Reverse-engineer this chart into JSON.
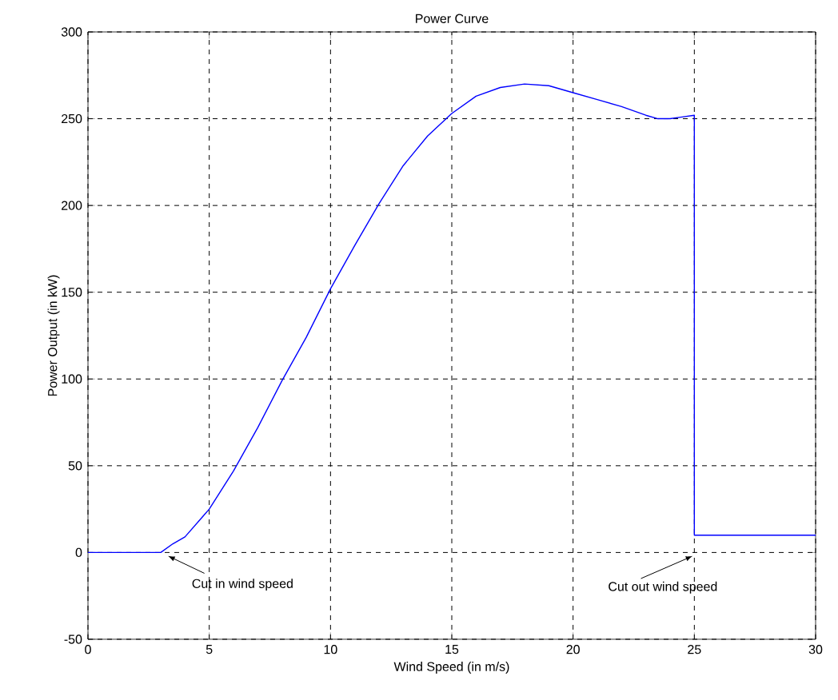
{
  "chart_data": {
    "type": "line",
    "title": "Power Curve",
    "xlabel": "Wind Speed  (in m/s)",
    "ylabel": "Power Output (in kW)",
    "x": [
      0,
      3,
      3.5,
      4,
      5,
      6,
      7,
      8,
      9,
      10,
      11,
      12,
      13,
      14,
      15,
      16,
      17,
      18,
      19,
      20,
      21,
      22,
      23,
      23.5,
      24,
      24.5,
      25,
      25,
      30
    ],
    "series": [
      {
        "color": "#0000ff",
        "values": [
          0,
          0,
          5,
          9,
          25,
          47,
          72,
          99,
          124,
          152,
          177,
          201,
          223,
          240,
          253,
          263,
          268,
          270,
          269,
          265,
          261,
          257,
          252,
          250,
          250,
          251,
          252,
          10,
          10
        ]
      }
    ],
    "xlim": [
      0,
      30
    ],
    "ylim": [
      -50,
      300
    ],
    "xticks": [
      0,
      5,
      10,
      15,
      20,
      25,
      30
    ],
    "yticks": [
      -50,
      0,
      50,
      100,
      150,
      200,
      250,
      300
    ],
    "grid": true,
    "line_style": "solid",
    "marker": "none",
    "annotations": [
      {
        "text": "Cut in wind speed",
        "x": 3,
        "y": 0
      },
      "Cut out wind speed"
    ]
  }
}
